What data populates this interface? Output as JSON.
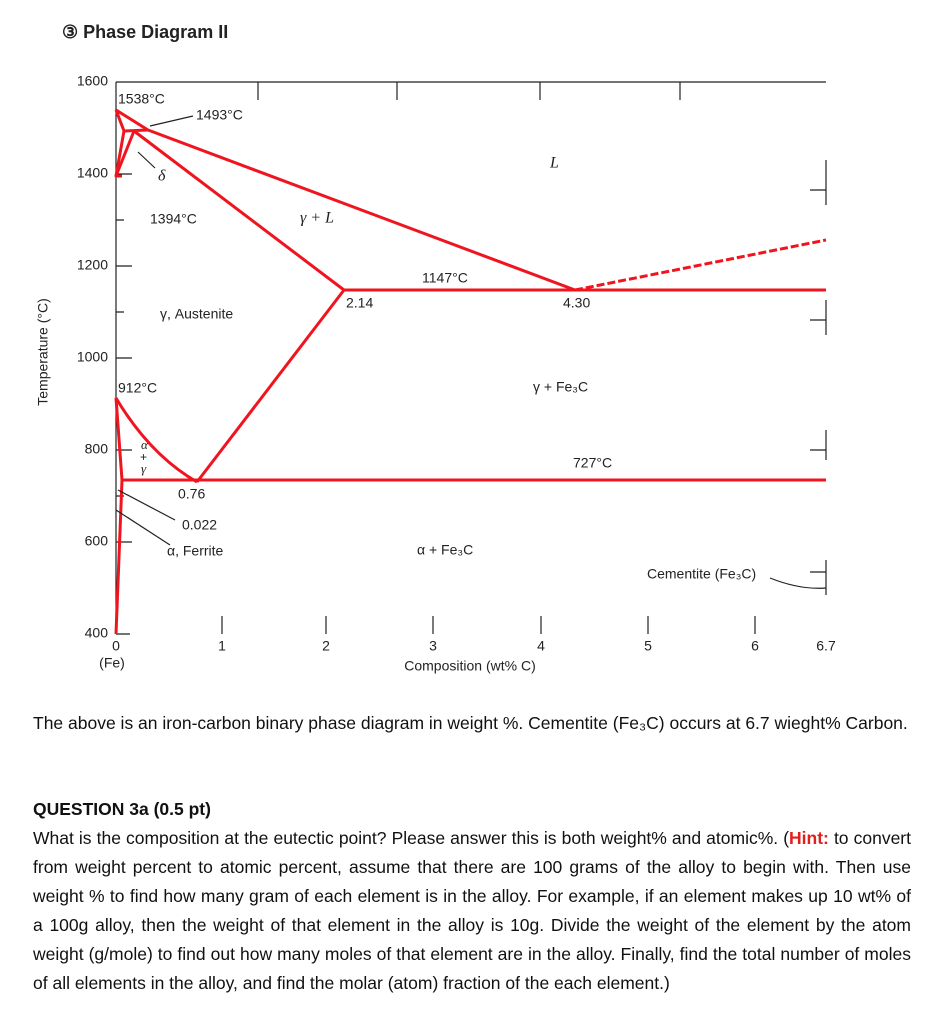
{
  "header": {
    "title": "③ Phase Diagram II"
  },
  "figure": {
    "y_axis_label": "Temperature (°C)",
    "x_axis_label": "Composition (wt% C)",
    "x_sublabel": "(Fe)",
    "y_ticks": [
      "1600",
      "1400",
      "1200",
      "1000",
      "800",
      "600",
      "400"
    ],
    "x_ticks": [
      "0",
      "1",
      "2",
      "3",
      "4",
      "5",
      "6",
      "6.7"
    ],
    "labels": [
      "1538°C",
      "1493°C",
      "δ",
      "L",
      "1394°C",
      "γ + L",
      "1147°C",
      "2.14",
      "4.30",
      "γ, Austenite",
      "912°C",
      "γ + Fe₃C",
      "727°C",
      "α",
      "+",
      "γ",
      "0.76",
      "0.022",
      "α, Ferrite",
      "α + Fe₃C",
      "Cementite (Fe₃C)"
    ]
  },
  "text": {
    "intro": "The above is an iron-carbon binary phase diagram in weight %.  Cementite (Fe₃C) occurs at 6.7 wieght% Carbon.",
    "question": {
      "heading": "QUESTION 3a (0.5 pt)",
      "before": "What is the composition at the eutectic point? Please answer this is both weight% and atomic%. (",
      "hint": "Hint:",
      "after": " to convert from weight percent to atomic percent, assume that there are 100 grams of the alloy to begin with.  Then use weight % to find how many gram of each element is in the alloy.  For example, if an element makes up 10 wt% of a 100g alloy, then the weight of that element in the alloy is 10g.  Divide the weight of the element by the atom weight (g/mole) to find out how many moles of that element are in the alloy.  Finally, find the total number of moles of all elements in the alloy, and find the molar (atom) fraction of the each element.)"
    }
  }
}
